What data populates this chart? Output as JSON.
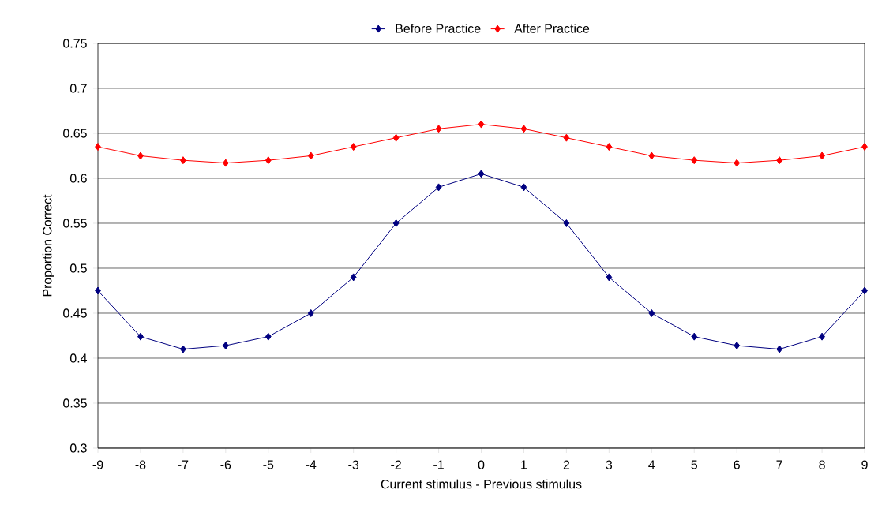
{
  "chart_data": {
    "type": "line",
    "xlabel": "Current stimulus - Previous stimulus",
    "ylabel": "Proportion Correct",
    "x": [
      -9,
      -8,
      -7,
      -6,
      -5,
      -4,
      -3,
      -2,
      -1,
      0,
      1,
      2,
      3,
      4,
      5,
      6,
      7,
      8,
      9
    ],
    "series": [
      {
        "name": "Before Practice",
        "color": "#000080",
        "values": [
          0.475,
          0.424,
          0.41,
          0.414,
          0.424,
          0.45,
          0.49,
          0.55,
          0.59,
          0.605,
          0.59,
          0.55,
          0.49,
          0.45,
          0.424,
          0.414,
          0.41,
          0.424,
          0.475
        ]
      },
      {
        "name": "After Practice",
        "color": "#ff0000",
        "values": [
          0.635,
          0.625,
          0.62,
          0.617,
          0.62,
          0.625,
          0.635,
          0.645,
          0.655,
          0.66,
          0.655,
          0.645,
          0.635,
          0.625,
          0.62,
          0.617,
          0.62,
          0.625,
          0.635
        ]
      }
    ],
    "xlim": [
      -9,
      9
    ],
    "xticks": [
      -9,
      -8,
      -7,
      -6,
      -5,
      -4,
      -3,
      -2,
      -1,
      0,
      1,
      2,
      3,
      4,
      5,
      6,
      7,
      8,
      9
    ],
    "ylim": [
      0.3,
      0.75
    ],
    "yticks": [
      0.3,
      0.35,
      0.4,
      0.45,
      0.5,
      0.55,
      0.6,
      0.65,
      0.7,
      0.75
    ],
    "grid": "y",
    "legend": "top",
    "marker": "diamond",
    "line_style": "solid"
  }
}
